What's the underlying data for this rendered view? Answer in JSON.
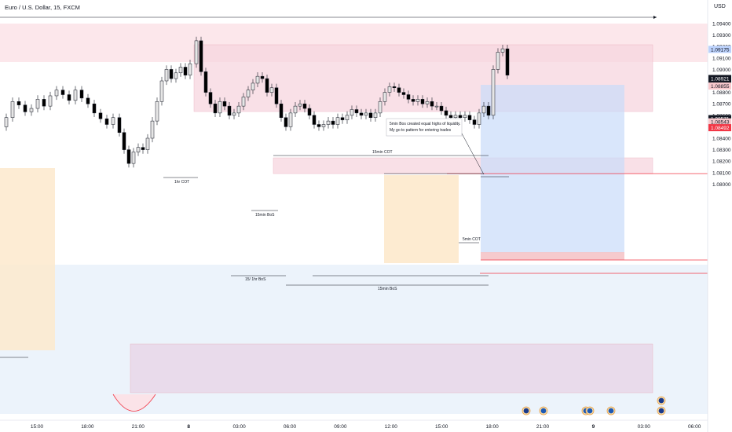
{
  "header": {
    "symbol_title": "Euro / U.S. Dollar, 15, FXCM",
    "currency": "USD"
  },
  "chart_data": {
    "type": "candlestick",
    "y_axis_ticks": [
      "1.09400",
      "1.09300",
      "1.09200",
      "1.09100",
      "1.09000",
      "1.08900",
      "1.08800",
      "1.08700",
      "1.08600",
      "1.08500",
      "1.08400",
      "1.08300",
      "1.08200",
      "1.08100",
      "1.08000"
    ],
    "x_axis_ticks": [
      "15:00",
      "18:00",
      "21:00",
      "8",
      "03:00",
      "06:00",
      "09:00",
      "12:00",
      "15:00",
      "18:00",
      "21:00",
      "9",
      "03:00",
      "06:00"
    ],
    "price_tags": [
      {
        "label": "1.09175",
        "price": 1.09175,
        "color": "#2962ff",
        "style": "light"
      },
      {
        "label": "1.08921",
        "sublabel": "03:41",
        "price": 1.08921,
        "color": "#131722",
        "style": "dark"
      },
      {
        "label": "1.08855",
        "price": 1.08855,
        "color": "#f23645",
        "style": "light"
      },
      {
        "label": "1.08571",
        "price": 1.08571,
        "color": "#131722",
        "style": "dark"
      },
      {
        "label": "1.08543",
        "price": 1.08543,
        "color": "#f23645",
        "style": "light"
      },
      {
        "label": "1.08492",
        "price": 1.08492,
        "color": "#f23645",
        "style": "solid"
      }
    ],
    "annotations": [
      {
        "text": "1hr COT",
        "kind": "structure"
      },
      {
        "text": "15min BoS",
        "kind": "structure"
      },
      {
        "text": "15min COT",
        "kind": "structure"
      },
      {
        "text": "15/ 1hr BoS",
        "kind": "structure"
      },
      {
        "text": "15min BoS",
        "kind": "structure"
      },
      {
        "text": "5min COT",
        "kind": "structure"
      },
      {
        "text": "5min Bos created equal highs of liquidity.",
        "kind": "note"
      },
      {
        "text": "My go to pattern for entering trades",
        "kind": "note"
      }
    ],
    "events": [
      {
        "flag": "EU",
        "color": "#1a3a8a"
      },
      {
        "flag": "US",
        "color": "#1e5ab4"
      },
      {
        "flag": "US",
        "color": "#1e5ab4"
      },
      {
        "flag": "US",
        "color": "#1e5ab4"
      },
      {
        "flag": "US",
        "color": "#1e5ab4"
      },
      {
        "flag": "EU",
        "color": "#1a3a8a"
      }
    ],
    "colors": {
      "bull_body": "#e6e6e6",
      "bear_body": "#000000",
      "wick": "#131722",
      "supply_zone": "#f7d6df",
      "demand_zone": "#e9e0f2",
      "range_zone": "#fde9cc",
      "target_zone": "#d5e3fb",
      "stop_zone": "#f5c4c8",
      "tag_red": "#f23645",
      "tag_blue": "#2962ff"
    }
  }
}
